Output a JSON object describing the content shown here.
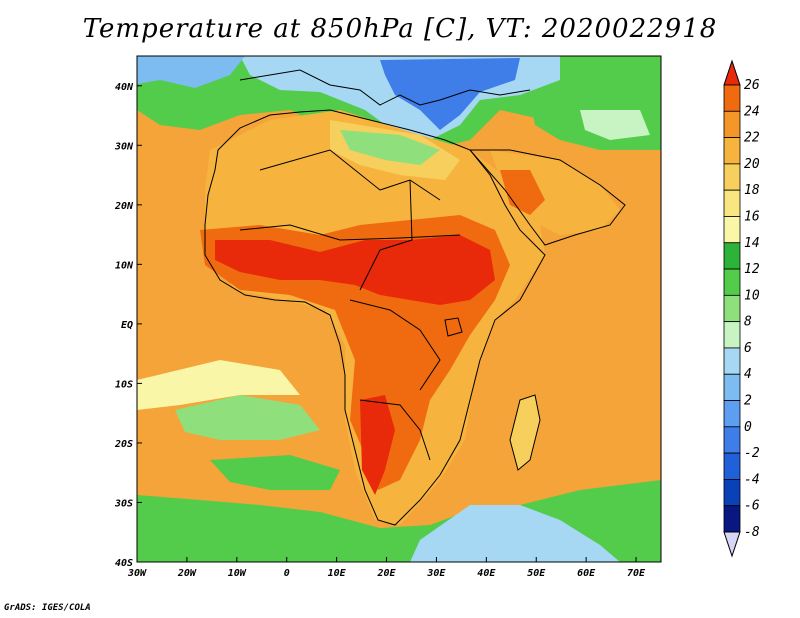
{
  "title": "Temperature at 850hPa [C], VT: 2020022918",
  "credit": "GrADS: IGES/COLA",
  "map": {
    "lon_range": [
      -30,
      75
    ],
    "lat_range": [
      -40,
      45
    ],
    "lon_ticks": [
      "30W",
      "20W",
      "10W",
      "0",
      "10E",
      "20E",
      "30E",
      "40E",
      "50E",
      "60E",
      "70E"
    ],
    "lat_ticks": [
      "40N",
      "30N",
      "20N",
      "10N",
      "EQ",
      "10S",
      "20S",
      "30S",
      "40S"
    ],
    "ocean_base_color": "#f5a43a",
    "land_hot_color": "#e8451e"
  },
  "colorbar": {
    "labels": [
      "26",
      "24",
      "22",
      "20",
      "18",
      "16",
      "14",
      "12",
      "10",
      "8",
      "6",
      "4",
      "2",
      "0",
      "-2",
      "-4",
      "-6",
      "-8"
    ],
    "colors": [
      "#e82a0a",
      "#f06a10",
      "#f59628",
      "#f6b43e",
      "#f7cf5c",
      "#fae680",
      "#f9f6a8",
      "#2eb33a",
      "#52cc4a",
      "#8fe07c",
      "#c8f4c4",
      "#a6d8f4",
      "#7cbcf0",
      "#5e9ef0",
      "#3f7ee8",
      "#2060d8",
      "#0a40b8",
      "#081880",
      "#d6d6f6"
    ]
  }
}
